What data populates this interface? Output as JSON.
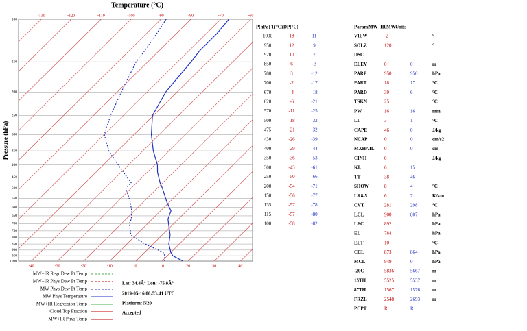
{
  "plot": {
    "title": "Temperature (°C)",
    "y_label": "Pressure (hPa)",
    "top_ticks": [
      -130,
      -120,
      -110,
      -100,
      -90,
      -80,
      -70,
      -60
    ],
    "bottom_ticks": [
      -40,
      -30,
      -20,
      -10,
      0,
      10,
      20,
      30,
      40
    ],
    "pressure_ticks": [
      100,
      150,
      200,
      250,
      300,
      350,
      400,
      450,
      500,
      550,
      600,
      650,
      700,
      750,
      800,
      850,
      900,
      950,
      1000
    ]
  },
  "legend": [
    "MW+IR Regr Dew Pt Temp",
    "MW+IR Phys Dew Pt Temp",
    "MW Phys Dew Pt Temp",
    "MW Phys Temperature",
    "MW+IR Regression Temp",
    "Cloud Top Fraction",
    "MW+IR Phys Temp"
  ],
  "info": {
    "location": "Lat: 34.4Â° Lon: -75.8Â°",
    "time": "2019-05-16 06:53:41 UTC",
    "platform": "Platform: N20",
    "status": "Accepted"
  },
  "sounding": {
    "headers": [
      "P(hPa)",
      "T(°C)",
      "DP(°C)"
    ],
    "rows": [
      [
        1000,
        18,
        11
      ],
      [
        950,
        12,
        9
      ],
      [
        920,
        10,
        7
      ],
      [
        850,
        6,
        -3
      ],
      [
        780,
        3,
        -12
      ],
      [
        700,
        -2,
        -17
      ],
      [
        670,
        -4,
        -18
      ],
      [
        620,
        -6,
        -21
      ],
      [
        570,
        -11,
        -25
      ],
      [
        500,
        -18,
        -32
      ],
      [
        475,
        -21,
        -32
      ],
      [
        430,
        -26,
        -39
      ],
      [
        400,
        -29,
        -44
      ],
      [
        350,
        -36,
        -53
      ],
      [
        300,
        -43,
        -61
      ],
      [
        250,
        -50,
        -66
      ],
      [
        200,
        -54,
        -71
      ],
      [
        150,
        -56,
        -77
      ],
      [
        135,
        -57,
        -78
      ],
      [
        115,
        -57,
        -80
      ],
      [
        100,
        -58,
        -82
      ]
    ]
  },
  "params": {
    "headers": [
      "Param",
      "MW_IR",
      "MW",
      "Units"
    ],
    "rows": [
      {
        "name": "VIEW",
        "mw_ir": -2,
        "units": "°"
      },
      {
        "name": "SOLZ",
        "mw_ir": 120,
        "units": "°"
      },
      {
        "name": "DSC"
      },
      {
        "name": "ELEV",
        "mw_ir": 0,
        "mw": 0,
        "units": "m"
      },
      {
        "name": "PARP",
        "mw_ir": 950,
        "mw": 950,
        "units": "hPa"
      },
      {
        "name": "PART",
        "mw_ir": 18,
        "mw": 17,
        "units": "°C"
      },
      {
        "name": "PARD",
        "mw_ir": 39,
        "mw": 6,
        "units": "°C"
      },
      {
        "name": "TSKN",
        "mw_ir": 25,
        "units": "°C"
      },
      {
        "name": "PW",
        "mw_ir": 16,
        "mw": 16,
        "units": "mm"
      },
      {
        "name": "LI.",
        "mw_ir": 3,
        "mw": 1,
        "units": "°C"
      },
      {
        "name": "CAPE",
        "mw_ir": 46,
        "mw": 0,
        "units": "J/kg"
      },
      {
        "name": "NCAP",
        "mw_ir": 0,
        "mw": 0,
        "units": "cm/s2"
      },
      {
        "name": "MXHAIL",
        "mw_ir": 0,
        "mw": 0,
        "units": "cm"
      },
      {
        "name": "CINH",
        "mw_ir": 0,
        "units": "J/kg"
      },
      {
        "name": "KI.",
        "mw_ir": 6,
        "mw": 15
      },
      {
        "name": "TT",
        "mw_ir": 38,
        "mw": 46
      },
      {
        "name": "SHOW",
        "mw_ir": 8,
        "mw": 4,
        "units": "°C"
      },
      {
        "name": "LR8-5",
        "mw_ir": 6,
        "mw": 7,
        "units": "K/km"
      },
      {
        "name": "CVT",
        "mw_ir": 281,
        "mw": 298,
        "units": "°C"
      },
      {
        "name": "LCL",
        "mw_ir": 900,
        "mw": 807,
        "units": "hPa"
      },
      {
        "name": "LFC",
        "mw_ir": 892,
        "units": "hPa"
      },
      {
        "name": "EL",
        "mw_ir": 784,
        "units": "hPa"
      },
      {
        "name": "ELT",
        "mw_ir": 10,
        "units": "°C"
      },
      {
        "name": "CCL",
        "mw_ir": 873,
        "mw": 864,
        "units": "hPa"
      },
      {
        "name": "MCL",
        "mw_ir": 949,
        "mw": 0,
        "units": "hPa"
      },
      {
        "name": "-20C",
        "mw_ir": 5836,
        "mw": 5667,
        "units": "m"
      },
      {
        "name": "15TH",
        "mw_ir": 5525,
        "mw": 5537,
        "units": "m"
      },
      {
        "name": "87TH",
        "mw_ir": 1567,
        "mw": 1576,
        "units": "m"
      },
      {
        "name": "FRZL",
        "mw_ir": 2548,
        "mw": 2693,
        "units": "m"
      },
      {
        "name": "PCPT",
        "mw_ir": "R",
        "mw": "R"
      }
    ]
  }
}
